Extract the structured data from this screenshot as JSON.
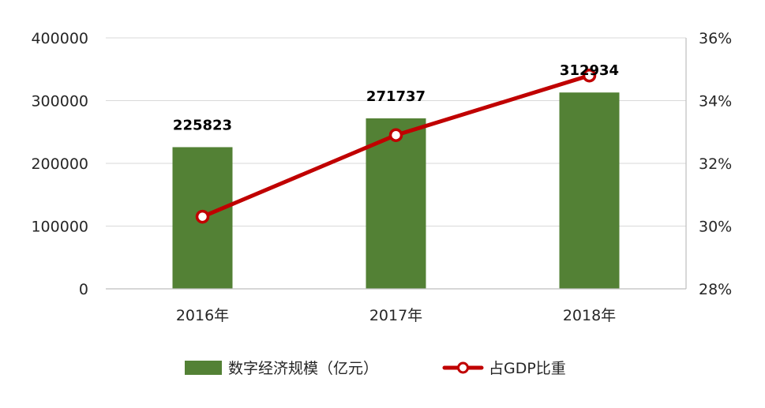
{
  "chart_data": {
    "type": "bar",
    "categories": [
      "2016年",
      "2017年",
      "2018年"
    ],
    "series": [
      {
        "name": "数字经济规模（亿元）",
        "type": "bar",
        "axis": "left",
        "values": [
          225823,
          271737,
          312934
        ],
        "data_labels": [
          "225823",
          "271737",
          "312934"
        ],
        "color": "#538135"
      },
      {
        "name": "占GDP比重",
        "type": "line",
        "axis": "right",
        "values": [
          30.3,
          32.9,
          34.8
        ],
        "color": "#C00000"
      }
    ],
    "left_axis": {
      "ylim": [
        0,
        400000
      ],
      "ticks": [
        0,
        100000,
        200000,
        300000,
        400000
      ],
      "tick_labels": [
        "0",
        "100000",
        "200000",
        "300000",
        "400000"
      ]
    },
    "right_axis": {
      "ylim": [
        28,
        36
      ],
      "ticks": [
        28,
        30,
        32,
        34,
        36
      ],
      "tick_labels": [
        "28%",
        "30%",
        "32%",
        "34%",
        "36%"
      ]
    },
    "grid": true,
    "legend_position": "bottom"
  }
}
